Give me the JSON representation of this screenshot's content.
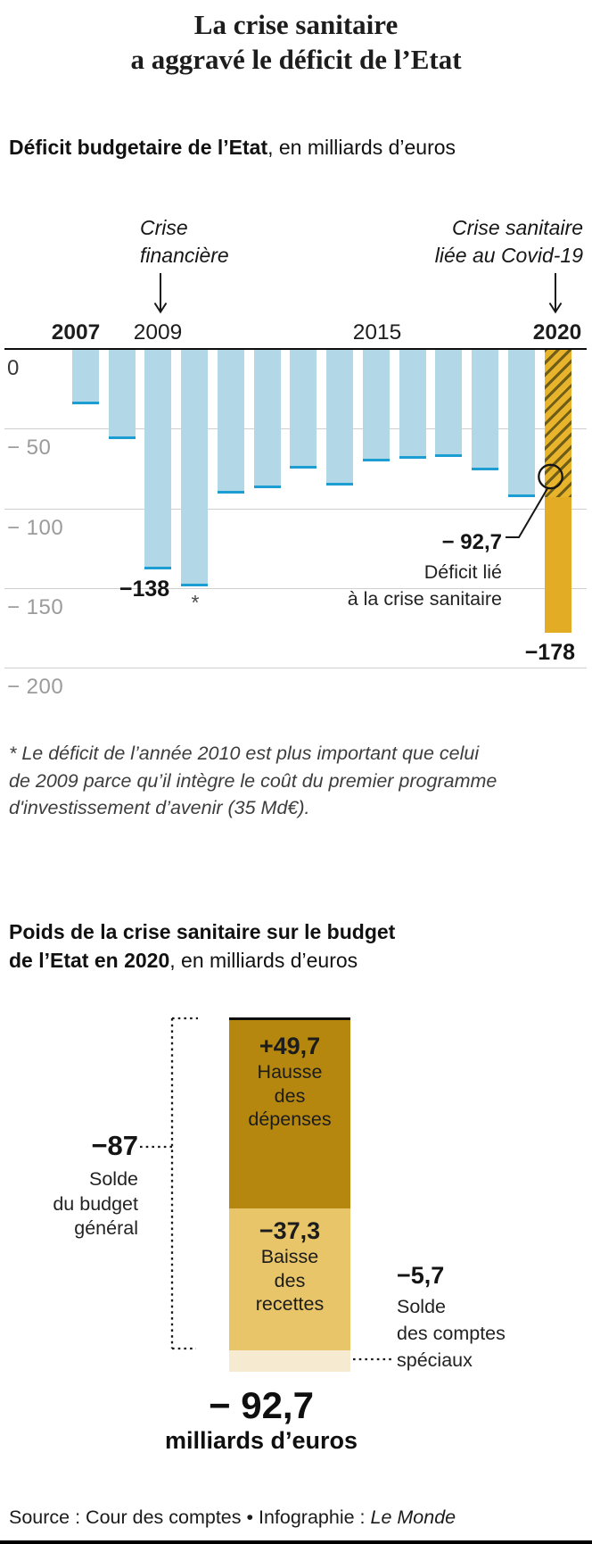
{
  "header": {
    "title_line1": "La crise sanitaire",
    "title_line2": "a aggravé le déficit de l’Etat"
  },
  "chart1": {
    "subtitle_bold": "Déficit budgetaire de l’Etat",
    "subtitle_rest": ", en milliards d’euros",
    "annotation_left_line1": "Crise",
    "annotation_left_line2": "financière",
    "annotation_right_line1": "Crise sanitaire",
    "annotation_right_line2": "liée au Covid-19",
    "value_label_2009": "−138",
    "asterisk_marker": "*",
    "callout_value": "− 92,7",
    "callout_line1": "Déficit lié",
    "callout_line2": "à la crise sanitaire",
    "value_label_2020": "−178",
    "footnote_line1": "* Le déficit de l’année 2010 est plus important que celui",
    "footnote_line2": "de 2009 parce qu’il intègre le coût du premier programme",
    "footnote_line3": "d'investissement d’avenir (35 Md€)."
  },
  "chart2": {
    "title_line1": "Poids de la crise sanitaire sur le budget",
    "title_line2_bold": "de l’Etat en 2020",
    "title_line2_rest": ", en milliards d’euros",
    "segment1": {
      "value_label": "+49,7",
      "line1": "Hausse",
      "line2": "des",
      "line3": "dépenses"
    },
    "segment2": {
      "value_label": "−37,3",
      "line1": "Baisse",
      "line2": "des",
      "line3": "recettes"
    },
    "left_label": {
      "value": "−87",
      "line1": "Solde",
      "line2": "du budget",
      "line3": "général"
    },
    "right_label": {
      "value": "−5,7",
      "line1": "Solde",
      "line2": "des comptes",
      "line3": "spéciaux"
    },
    "total_value": "− 92,7",
    "total_unit": "milliards d’euros"
  },
  "source": {
    "prefix": "Source : Cour des comptes • Infographie : ",
    "publisher": "Le Monde"
  },
  "chart_data": [
    {
      "type": "bar",
      "title": "Déficit budgetaire de l’Etat, en milliards d’euros",
      "categories": [
        "2007",
        "2008",
        "2009",
        "2010",
        "2011",
        "2012",
        "2013",
        "2014",
        "2015",
        "2016",
        "2017",
        "2018",
        "2019",
        "2020"
      ],
      "values": [
        -34.7,
        -56.3,
        -138,
        -148.8,
        -90.7,
        -87.2,
        -74.9,
        -85.6,
        -70.5,
        -69.1,
        -67.7,
        -76,
        -92.7,
        -178
      ],
      "ylim": [
        -200,
        0
      ],
      "grid": true,
      "yticks": [
        {
          "value": 0,
          "label": "0"
        },
        {
          "value": -50,
          "label": "− 50"
        },
        {
          "value": -100,
          "label": "− 100"
        },
        {
          "value": -150,
          "label": "− 150"
        },
        {
          "value": -200,
          "label": "− 200"
        }
      ],
      "x_tick_labels": [
        {
          "text": "2007",
          "bold": true
        },
        {
          "text": "2009",
          "bold": false
        },
        {
          "text": "2015",
          "bold": false
        },
        {
          "text": "2020",
          "bold": true
        }
      ],
      "labeled_values": {
        "year_2009": "−138",
        "year_2020": "−178",
        "covid_portion_of_2020": "− 92,7"
      },
      "covid_portion_of_2020": -92.7,
      "bar_color": "#b2d7e7",
      "bar_edge_color": "#1d9ed2",
      "highlight_bar_color": "#e2ac25",
      "highlight_hatch_color": "#6f5d18",
      "annotations": [
        "Crise financière (2009)",
        "Crise sanitaire liée au Covid-19 (2020)",
        "Déficit lié à la crise sanitaire : − 92,7"
      ]
    },
    {
      "type": "stacked_bar",
      "title": "Poids de la crise sanitaire sur le budget de l’Etat en 2020, en milliards d’euros",
      "segments": [
        {
          "name": "Hausse des dépenses",
          "value": 49.7,
          "color": "#b5870f"
        },
        {
          "name": "Baisse des recettes",
          "value": -37.3,
          "color": "#e7c568"
        },
        {
          "name": "Solde des comptes spéciaux",
          "value": -5.7,
          "color": "#f6ead0"
        }
      ],
      "budget_general_total": -87,
      "grand_total": -92.7
    }
  ]
}
